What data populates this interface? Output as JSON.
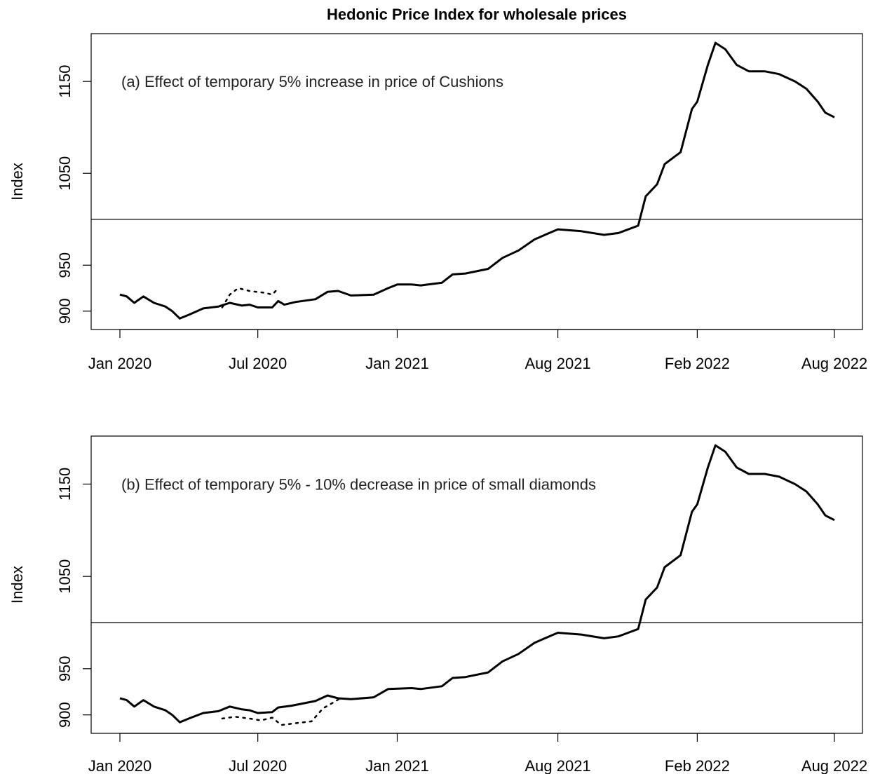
{
  "figure": {
    "title": "Hedonic Price Index for wholesale prices"
  },
  "chart_data": [
    {
      "type": "line",
      "annotation": "(a) Effect of temporary 5% increase in price of Cushions",
      "ylabel": "Index",
      "yticks": [
        900,
        950,
        1050,
        1150
      ],
      "xticks": [
        "Jan 2020",
        "Jul 2020",
        "Jan 2021",
        "Aug 2021",
        "Feb 2022",
        "Aug 2022"
      ],
      "x_range": [
        "2020-01",
        "2022-08"
      ],
      "ylim": [
        880,
        1202
      ],
      "reference_line": 1000,
      "series": [
        {
          "style": "solid",
          "points": [
            [
              "2020-01-01",
              918
            ],
            [
              "2020-01-10",
              916
            ],
            [
              "2020-01-20",
              909
            ],
            [
              "2020-02-01",
              916
            ],
            [
              "2020-02-15",
              909
            ],
            [
              "2020-03-01",
              905
            ],
            [
              "2020-03-10",
              900
            ],
            [
              "2020-03-20",
              892
            ],
            [
              "2020-04-01",
              896
            ],
            [
              "2020-04-20",
              903
            ],
            [
              "2020-05-10",
              905
            ],
            [
              "2020-05-25",
              909
            ],
            [
              "2020-06-10",
              906
            ],
            [
              "2020-06-20",
              907
            ],
            [
              "2020-07-01",
              904
            ],
            [
              "2020-07-20",
              904
            ],
            [
              "2020-07-28",
              911
            ],
            [
              "2020-08-05",
              907
            ],
            [
              "2020-08-20",
              910
            ],
            [
              "2020-09-15",
              913
            ],
            [
              "2020-10-01",
              921
            ],
            [
              "2020-10-15",
              922
            ],
            [
              "2020-11-01",
              917
            ],
            [
              "2020-12-01",
              918
            ],
            [
              "2020-12-20",
              925
            ],
            [
              "2021-01-01",
              929
            ],
            [
              "2021-01-20",
              929
            ],
            [
              "2021-02-01",
              928
            ],
            [
              "2021-03-01",
              931
            ],
            [
              "2021-03-15",
              940
            ],
            [
              "2021-04-01",
              941
            ],
            [
              "2021-05-01",
              946
            ],
            [
              "2021-05-20",
              958
            ],
            [
              "2021-06-10",
              966
            ],
            [
              "2021-07-01",
              978
            ],
            [
              "2021-07-15",
              983
            ],
            [
              "2021-08-01",
              989
            ],
            [
              "2021-09-01",
              987
            ],
            [
              "2021-10-01",
              983
            ],
            [
              "2021-10-20",
              985
            ],
            [
              "2021-11-15",
              993
            ],
            [
              "2021-11-25",
              1025
            ],
            [
              "2021-12-10",
              1038
            ],
            [
              "2021-12-20",
              1060
            ],
            [
              "2022-01-10",
              1073
            ],
            [
              "2022-01-25",
              1120
            ],
            [
              "2022-02-01",
              1128
            ],
            [
              "2022-02-15",
              1168
            ],
            [
              "2022-02-25",
              1192
            ],
            [
              "2022-03-10",
              1185
            ],
            [
              "2022-03-25",
              1168
            ],
            [
              "2022-04-10",
              1161
            ],
            [
              "2022-05-01",
              1161
            ],
            [
              "2022-05-20",
              1158
            ],
            [
              "2022-06-10",
              1150
            ],
            [
              "2022-06-25",
              1142
            ],
            [
              "2022-07-10",
              1128
            ],
            [
              "2022-07-20",
              1116
            ],
            [
              "2022-08-01",
              1111
            ]
          ]
        },
        {
          "style": "dotted",
          "points": [
            [
              "2020-05-15",
              904
            ],
            [
              "2020-05-25",
              918
            ],
            [
              "2020-06-05",
              925
            ],
            [
              "2020-06-20",
              922
            ],
            [
              "2020-07-10",
              920
            ],
            [
              "2020-07-20",
              918
            ],
            [
              "2020-07-27",
              924
            ]
          ]
        }
      ]
    },
    {
      "type": "line",
      "annotation": "(b) Effect of temporary 5% - 10% decrease in price of small diamonds",
      "ylabel": "Index",
      "yticks": [
        900,
        950,
        1050,
        1150
      ],
      "xticks": [
        "Jan 2020",
        "Jul 2020",
        "Jan 2021",
        "Aug 2021",
        "Feb 2022",
        "Aug 2022"
      ],
      "x_range": [
        "2020-01",
        "2022-08"
      ],
      "ylim": [
        880,
        1202
      ],
      "reference_line": 1000,
      "series": [
        {
          "style": "solid",
          "points": [
            [
              "2020-01-01",
              918
            ],
            [
              "2020-01-10",
              916
            ],
            [
              "2020-01-20",
              909
            ],
            [
              "2020-02-01",
              916
            ],
            [
              "2020-02-15",
              909
            ],
            [
              "2020-03-01",
              905
            ],
            [
              "2020-03-10",
              900
            ],
            [
              "2020-03-20",
              892
            ],
            [
              "2020-04-01",
              896
            ],
            [
              "2020-04-20",
              902
            ],
            [
              "2020-05-10",
              904
            ],
            [
              "2020-05-25",
              909
            ],
            [
              "2020-06-10",
              906
            ],
            [
              "2020-06-20",
              905
            ],
            [
              "2020-07-01",
              902
            ],
            [
              "2020-07-20",
              903
            ],
            [
              "2020-07-28",
              908
            ],
            [
              "2020-08-15",
              910
            ],
            [
              "2020-09-15",
              915
            ],
            [
              "2020-10-01",
              921
            ],
            [
              "2020-10-15",
              918
            ],
            [
              "2020-11-01",
              917
            ],
            [
              "2020-12-01",
              919
            ],
            [
              "2020-12-20",
              928
            ],
            [
              "2021-01-20",
              929
            ],
            [
              "2021-02-01",
              928
            ],
            [
              "2021-03-01",
              931
            ],
            [
              "2021-03-15",
              940
            ],
            [
              "2021-04-01",
              941
            ],
            [
              "2021-05-01",
              946
            ],
            [
              "2021-05-20",
              958
            ],
            [
              "2021-06-10",
              966
            ],
            [
              "2021-07-01",
              978
            ],
            [
              "2021-07-15",
              983
            ],
            [
              "2021-08-01",
              989
            ],
            [
              "2021-09-01",
              987
            ],
            [
              "2021-10-01",
              983
            ],
            [
              "2021-10-20",
              985
            ],
            [
              "2021-11-15",
              993
            ],
            [
              "2021-11-25",
              1025
            ],
            [
              "2021-12-10",
              1038
            ],
            [
              "2021-12-20",
              1060
            ],
            [
              "2022-01-10",
              1073
            ],
            [
              "2022-01-25",
              1120
            ],
            [
              "2022-02-01",
              1128
            ],
            [
              "2022-02-15",
              1168
            ],
            [
              "2022-02-25",
              1192
            ],
            [
              "2022-03-10",
              1185
            ],
            [
              "2022-03-25",
              1168
            ],
            [
              "2022-04-10",
              1161
            ],
            [
              "2022-05-01",
              1161
            ],
            [
              "2022-05-20",
              1158
            ],
            [
              "2022-06-10",
              1150
            ],
            [
              "2022-06-25",
              1142
            ],
            [
              "2022-07-10",
              1128
            ],
            [
              "2022-07-20",
              1116
            ],
            [
              "2022-08-01",
              1111
            ]
          ]
        },
        {
          "style": "dotted",
          "points": [
            [
              "2020-05-15",
              896
            ],
            [
              "2020-06-01",
              898
            ],
            [
              "2020-06-20",
              896
            ],
            [
              "2020-07-05",
              894
            ],
            [
              "2020-07-20",
              897
            ],
            [
              "2020-08-01",
              889
            ],
            [
              "2020-08-20",
              891
            ],
            [
              "2020-09-10",
              893
            ],
            [
              "2020-09-25",
              907
            ],
            [
              "2020-10-10",
              914
            ],
            [
              "2020-10-20",
              919
            ]
          ]
        }
      ]
    }
  ]
}
